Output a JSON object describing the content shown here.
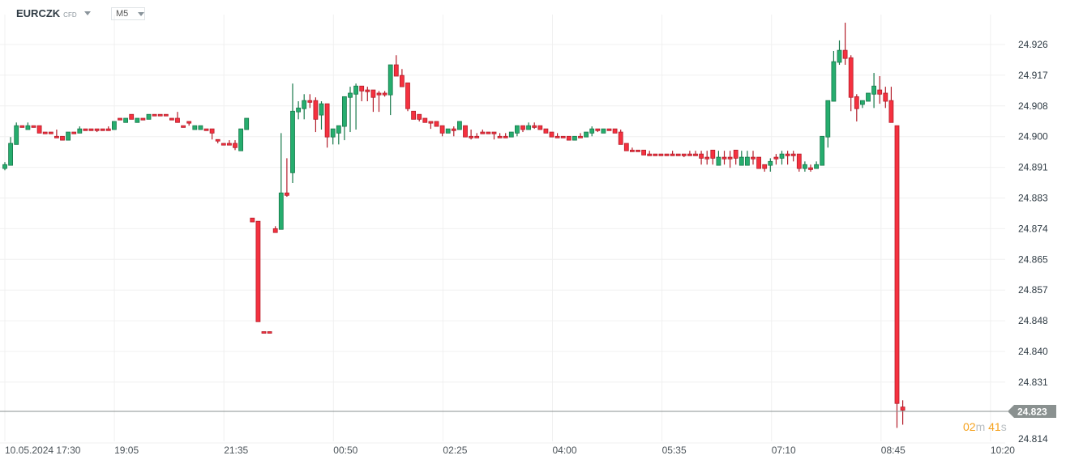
{
  "header": {
    "symbol": "EURCZK",
    "instrument_type": "CFD",
    "timeframe": "M5"
  },
  "colors": {
    "up": "#26ad6e",
    "up_border": "#17784a",
    "down": "#f5313f",
    "down_border": "#b31d2a",
    "grid": "#f0f0f0",
    "price_line": "#8a9190",
    "price_tag": "#8a9190",
    "countdown": "#f5a11c"
  },
  "current_price": "24.823",
  "countdown": {
    "minutes": "02",
    "minutes_unit": "m",
    "seconds": "41",
    "seconds_unit": "s"
  },
  "chart_data": {
    "type": "candlestick",
    "symbol": "EURCZK",
    "timeframe": "M5",
    "x_tick_labels": [
      "10.05.2024  17:30",
      "19:05",
      "21:35",
      "00:50",
      "02:25",
      "04:00",
      "05:35",
      "07:10",
      "08:45",
      "10:20"
    ],
    "y_tick_labels": [
      "24.926",
      "24.917",
      "24.908",
      "24.900",
      "24.891",
      "24.883",
      "24.874",
      "24.865",
      "24.857",
      "24.848",
      "24.840",
      "24.831",
      "24.814"
    ],
    "ylim": [
      24.812,
      24.936
    ],
    "grid": true,
    "last_price": 24.823,
    "candles_ohlc": [
      [
        24.8912,
        24.893,
        24.8907,
        24.8923
      ],
      [
        24.8921,
        24.9001,
        24.8921,
        24.8983
      ],
      [
        24.898,
        24.9042,
        24.898,
        24.9033
      ],
      [
        24.9033,
        24.9033,
        24.9028,
        24.9028
      ],
      [
        24.9022,
        24.9042,
        24.9022,
        24.9033
      ],
      [
        24.9033,
        24.9033,
        24.9028,
        24.9028
      ],
      [
        24.9033,
        24.9033,
        24.9012,
        24.9012
      ],
      [
        24.9015,
        24.9015,
        24.901,
        24.901
      ],
      [
        24.9015,
        24.9015,
        24.901,
        24.901
      ],
      [
        24.9003,
        24.9022,
        24.8999,
        24.8999
      ],
      [
        24.9003,
        24.9003,
        24.8992,
        24.8992
      ],
      [
        24.8992,
        24.9015,
        24.8992,
        24.9015
      ],
      [
        24.9015,
        24.9015,
        24.901,
        24.901
      ],
      [
        24.9012,
        24.9031,
        24.9012,
        24.9024
      ],
      [
        24.9024,
        24.9024,
        24.9019,
        24.9019
      ],
      [
        24.9024,
        24.9024,
        24.9019,
        24.9019
      ],
      [
        24.9024,
        24.9024,
        24.9015,
        24.9019
      ],
      [
        24.9024,
        24.9024,
        24.9019,
        24.9019
      ],
      [
        24.9024,
        24.9031,
        24.9019,
        24.9019
      ],
      [
        24.9022,
        24.9045,
        24.9022,
        24.9045
      ],
      [
        24.9054,
        24.9054,
        24.9049,
        24.9049
      ],
      [
        24.9042,
        24.9054,
        24.9042,
        24.9054
      ],
      [
        24.9065,
        24.9065,
        24.9051,
        24.9051
      ],
      [
        24.9042,
        24.9054,
        24.9042,
        24.9054
      ],
      [
        24.9054,
        24.9054,
        24.9049,
        24.9049
      ],
      [
        24.9051,
        24.9065,
        24.9051,
        24.9065
      ],
      [
        24.9065,
        24.9065,
        24.9061,
        24.9061
      ],
      [
        24.9065,
        24.9065,
        24.9061,
        24.9061
      ],
      [
        24.9065,
        24.9065,
        24.9061,
        24.9061
      ],
      [
        24.9054,
        24.9054,
        24.9049,
        24.9049
      ],
      [
        24.9054,
        24.9072,
        24.9042,
        24.9042
      ],
      [
        24.9033,
        24.9033,
        24.9028,
        24.9028
      ],
      [
        24.9045,
        24.9045,
        24.9033,
        24.904
      ],
      [
        24.9022,
        24.9033,
        24.9022,
        24.9033
      ],
      [
        24.9022,
        24.9033,
        24.9022,
        24.9033
      ],
      [
        24.9024,
        24.9024,
        24.9019,
        24.9019
      ],
      [
        24.9024,
        24.9024,
        24.8994,
        24.9012
      ],
      [
        24.8994,
        24.8994,
        24.8983,
        24.899
      ],
      [
        24.8983,
        24.8983,
        24.8978,
        24.8978
      ],
      [
        24.8983,
        24.8992,
        24.8978,
        24.8978
      ],
      [
        24.8983,
        24.8992,
        24.8964,
        24.8971
      ],
      [
        24.8962,
        24.9024,
        24.8962,
        24.9024
      ],
      [
        24.9022,
        24.9054,
        24.9022,
        24.9054
      ],
      [
        24.8772,
        24.8772,
        24.8761,
        24.8761
      ],
      [
        24.8763,
        24.8763,
        24.8479,
        24.8479
      ],
      [
        24.8451,
        24.8451,
        24.8447,
        24.8447
      ],
      [
        24.8451,
        24.8451,
        24.8447,
        24.8447
      ],
      [
        24.8742,
        24.8749,
        24.8731,
        24.8731
      ],
      [
        24.874,
        24.9012,
        24.874,
        24.8843
      ],
      [
        24.8843,
        24.8941,
        24.8832,
        24.8836
      ],
      [
        24.89,
        24.9152,
        24.8871,
        24.9074
      ],
      [
        24.9072,
        24.9102,
        24.9051,
        24.9083
      ],
      [
        24.9081,
        24.9122,
        24.9051,
        24.9104
      ],
      [
        24.9104,
        24.9122,
        24.9083,
        24.9099
      ],
      [
        24.9104,
        24.9113,
        24.9015,
        24.9051
      ],
      [
        24.9063,
        24.9102,
        24.9022,
        24.9095
      ],
      [
        24.9095,
        24.9095,
        24.8971,
        24.9001
      ],
      [
        24.9001,
        24.9024,
        24.898,
        24.9024
      ],
      [
        24.9012,
        24.9033,
        24.898,
        24.9033
      ],
      [
        24.9031,
        24.9115,
        24.8992,
        24.9115
      ],
      [
        24.9113,
        24.9143,
        24.9015,
        24.9125
      ],
      [
        24.9122,
        24.9152,
        24.9022,
        24.9145
      ],
      [
        24.9145,
        24.9145,
        24.9102,
        24.9131
      ],
      [
        24.9134,
        24.9143,
        24.9102,
        24.9129
      ],
      [
        24.9134,
        24.9134,
        24.9072,
        24.9113
      ],
      [
        24.9125,
        24.9131,
        24.9072,
        24.912
      ],
      [
        24.9125,
        24.9131,
        24.9115,
        24.912
      ],
      [
        24.912,
        24.9205,
        24.9063,
        24.9205
      ],
      [
        24.9205,
        24.9232,
        24.9173,
        24.9173
      ],
      [
        24.9175,
        24.9193,
        24.9143,
        24.9143
      ],
      [
        24.9154,
        24.9154,
        24.9074,
        24.9081
      ],
      [
        24.9074,
        24.9074,
        24.9051,
        24.9051
      ],
      [
        24.9065,
        24.9065,
        24.9045,
        24.9051
      ],
      [
        24.9054,
        24.9054,
        24.9042,
        24.9042
      ],
      [
        24.9045,
        24.9045,
        24.9024,
        24.904
      ],
      [
        24.9045,
        24.9045,
        24.9031,
        24.9031
      ],
      [
        24.9033,
        24.9033,
        24.9003,
        24.9012
      ],
      [
        24.9012,
        24.9024,
        24.9012,
        24.9024
      ],
      [
        24.9024,
        24.9031,
        24.9003,
        24.9019
      ],
      [
        24.9022,
        24.9045,
        24.9022,
        24.9045
      ],
      [
        24.9033,
        24.9033,
        24.9001,
        24.9001
      ],
      [
        24.9003,
        24.9022,
        24.8994,
        24.8999
      ],
      [
        24.9003,
        24.9012,
        24.8999,
        24.8999
      ],
      [
        24.9015,
        24.9022,
        24.901,
        24.901
      ],
      [
        24.9015,
        24.9015,
        24.901,
        24.901
      ],
      [
        24.9015,
        24.9015,
        24.8994,
        24.901
      ],
      [
        24.9003,
        24.9012,
        24.8999,
        24.8999
      ],
      [
        24.9003,
        24.9012,
        24.8999,
        24.8999
      ],
      [
        24.9001,
        24.9015,
        24.9001,
        24.9015
      ],
      [
        24.9012,
        24.9033,
        24.9003,
        24.9033
      ],
      [
        24.9033,
        24.9033,
        24.9015,
        24.9022
      ],
      [
        24.9022,
        24.9042,
        24.9022,
        24.9033
      ],
      [
        24.9033,
        24.9042,
        24.9024,
        24.9028
      ],
      [
        24.9033,
        24.9033,
        24.9022,
        24.9022
      ],
      [
        24.9024,
        24.9024,
        24.9012,
        24.9012
      ],
      [
        24.9015,
        24.9015,
        24.9001,
        24.9001
      ],
      [
        24.9003,
        24.9012,
        24.8999,
        24.8999
      ],
      [
        24.9003,
        24.9003,
        24.8999,
        24.8999
      ],
      [
        24.9003,
        24.9003,
        24.8992,
        24.8992
      ],
      [
        24.8992,
        24.9003,
        24.8992,
        24.9003
      ],
      [
        24.9003,
        24.9012,
        24.8999,
        24.8999
      ],
      [
        24.9001,
        24.9015,
        24.9001,
        24.9015
      ],
      [
        24.9012,
        24.9031,
        24.9003,
        24.9024
      ],
      [
        24.9024,
        24.9024,
        24.9015,
        24.9019
      ],
      [
        24.9012,
        24.9024,
        24.9012,
        24.9024
      ],
      [
        24.9024,
        24.9024,
        24.9019,
        24.9019
      ],
      [
        24.9024,
        24.9024,
        24.9012,
        24.9012
      ],
      [
        24.9015,
        24.9022,
        24.898,
        24.898
      ],
      [
        24.8983,
        24.8983,
        24.8962,
        24.8962
      ],
      [
        24.8964,
        24.8971,
        24.896,
        24.896
      ],
      [
        24.8964,
        24.8964,
        24.896,
        24.896
      ],
      [
        24.8964,
        24.8964,
        24.895,
        24.895
      ],
      [
        24.8953,
        24.8962,
        24.8948,
        24.8948
      ],
      [
        24.8953,
        24.8953,
        24.8948,
        24.8948
      ],
      [
        24.8953,
        24.8953,
        24.8948,
        24.8948
      ],
      [
        24.8953,
        24.8953,
        24.8948,
        24.8948
      ],
      [
        24.8953,
        24.8962,
        24.8948,
        24.8948
      ],
      [
        24.8953,
        24.8953,
        24.8948,
        24.8948
      ],
      [
        24.8953,
        24.8953,
        24.8944,
        24.8948
      ],
      [
        24.8953,
        24.8962,
        24.8948,
        24.8948
      ],
      [
        24.8953,
        24.8962,
        24.8948,
        24.8948
      ],
      [
        24.8953,
        24.8962,
        24.8923,
        24.8941
      ],
      [
        24.8944,
        24.8962,
        24.8923,
        24.8939
      ],
      [
        24.8964,
        24.8964,
        24.8923,
        24.8941
      ],
      [
        24.8921,
        24.8962,
        24.8921,
        24.8944
      ],
      [
        24.8944,
        24.8962,
        24.8923,
        24.8939
      ],
      [
        24.8944,
        24.8962,
        24.8914,
        24.8939
      ],
      [
        24.8964,
        24.8964,
        24.8923,
        24.8941
      ],
      [
        24.8921,
        24.8962,
        24.8921,
        24.8944
      ],
      [
        24.8921,
        24.8962,
        24.8921,
        24.8944
      ],
      [
        24.8944,
        24.8962,
        24.8923,
        24.8939
      ],
      [
        24.8944,
        24.8944,
        24.8912,
        24.8912
      ],
      [
        24.8923,
        24.8923,
        24.8903,
        24.8912
      ],
      [
        24.8921,
        24.8941,
        24.8903,
        24.8932
      ],
      [
        24.8944,
        24.8953,
        24.8923,
        24.8939
      ],
      [
        24.8941,
        24.8962,
        24.8923,
        24.8953
      ],
      [
        24.8953,
        24.8962,
        24.8923,
        24.8948
      ],
      [
        24.8953,
        24.8962,
        24.8932,
        24.8948
      ],
      [
        24.8953,
        24.8953,
        24.8903,
        24.8912
      ],
      [
        24.8912,
        24.8932,
        24.8903,
        24.8923
      ],
      [
        24.8914,
        24.8923,
        24.8903,
        24.8909
      ],
      [
        24.8912,
        24.8932,
        24.8912,
        24.8923
      ],
      [
        24.8921,
        24.9003,
        24.8921,
        24.9003
      ],
      [
        24.9001,
        24.9104,
        24.8971,
        24.9104
      ],
      [
        24.9102,
        24.9244,
        24.9102,
        24.9214
      ],
      [
        24.9212,
        24.9274,
        24.9205,
        24.9246
      ],
      [
        24.9246,
        24.9324,
        24.9205,
        24.9223
      ],
      [
        24.9225,
        24.9232,
        24.9074,
        24.9113
      ],
      [
        24.9115,
        24.9122,
        24.9045,
        24.9081
      ],
      [
        24.9093,
        24.9104,
        24.9083,
        24.9104
      ],
      [
        24.9102,
        24.9125,
        24.9102,
        24.9125
      ],
      [
        24.9122,
        24.9182,
        24.9083,
        24.9145
      ],
      [
        24.9134,
        24.9173,
        24.9095,
        24.9122
      ],
      [
        24.9125,
        24.9143,
        24.9083,
        24.9102
      ],
      [
        24.9104,
        24.9143,
        24.9042,
        24.9042
      ],
      [
        24.9033,
        24.9033,
        24.8179,
        24.8248
      ],
      [
        24.8238,
        24.8257,
        24.8188,
        24.8229
      ]
    ]
  }
}
